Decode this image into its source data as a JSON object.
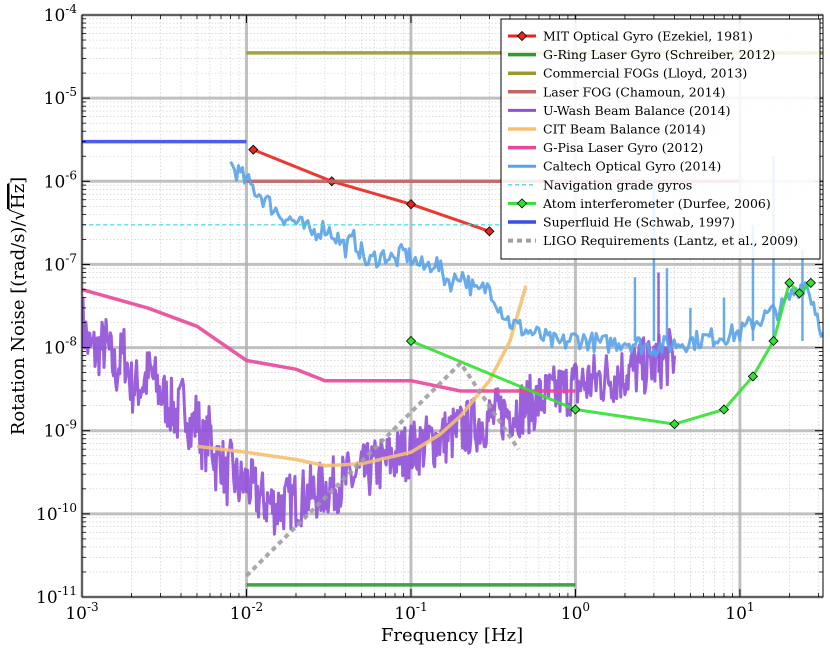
{
  "chart_data": {
    "type": "line",
    "title": "",
    "xlabel": "Frequency [Hz]",
    "ylabel": "Rotation Noise [(rad/s)/√Hz]",
    "ylabel_parts": {
      "before": "Rotation Noise [(rad/s)/",
      "root_symbol": "√",
      "root_arg": "Hz",
      "after": "]"
    },
    "xscale": "log",
    "yscale": "log",
    "xlim": [
      0.001,
      32
    ],
    "ylim": [
      1e-11,
      0.0001
    ],
    "grid": true,
    "legend_position": "top-right",
    "x_ticks": [
      {
        "value": 0.001,
        "base": "10",
        "exp": "-3"
      },
      {
        "value": 0.01,
        "base": "10",
        "exp": "-2"
      },
      {
        "value": 0.1,
        "base": "10",
        "exp": "-1"
      },
      {
        "value": 1,
        "base": "10",
        "exp": "0"
      },
      {
        "value": 10,
        "base": "10",
        "exp": "1"
      }
    ],
    "y_ticks": [
      {
        "value": 1e-11,
        "base": "10",
        "exp": "-11"
      },
      {
        "value": 1e-10,
        "base": "10",
        "exp": "-10"
      },
      {
        "value": 1e-09,
        "base": "10",
        "exp": "-9"
      },
      {
        "value": 1e-08,
        "base": "10",
        "exp": "-8"
      },
      {
        "value": 1e-07,
        "base": "10",
        "exp": "-7"
      },
      {
        "value": 1e-06,
        "base": "10",
        "exp": "-6"
      },
      {
        "value": 1e-05,
        "base": "10",
        "exp": "-5"
      },
      {
        "value": 0.0001,
        "base": "10",
        "exp": "-4"
      }
    ],
    "series": [
      {
        "name": "MIT Optical Gyro (Ezekiel, 1981)",
        "color": "#e8251e",
        "style": "solid-marker",
        "x": [
          0.011,
          0.033,
          0.1,
          0.3
        ],
        "y": [
          2.4e-06,
          1e-06,
          5.3e-07,
          2.5e-07
        ]
      },
      {
        "name": "G-Ring Laser Gyro (Schreiber, 2012)",
        "color": "#2f9a2f",
        "style": "solid",
        "x": [
          0.01,
          1
        ],
        "y": [
          1.4e-11,
          1.4e-11
        ]
      },
      {
        "name": "Commercial FOGs (Lloyd, 2013)",
        "color": "#9a9a2a",
        "style": "solid",
        "x": [
          0.01,
          32
        ],
        "y": [
          3.5e-05,
          3.5e-05
        ]
      },
      {
        "name": "Laser FOG (Chamoun, 2014)",
        "color": "#c06565",
        "style": "solid",
        "x": [
          0.01,
          10
        ],
        "y": [
          1e-06,
          1e-06
        ]
      },
      {
        "name": "U-Wash Beam Balance (2014)",
        "color": "#9050d8",
        "style": "noisy",
        "x": [
          0.001,
          0.0011,
          0.0012,
          0.0014,
          0.0016,
          0.0018,
          0.002,
          0.0023,
          0.0026,
          0.003,
          0.0034,
          0.0038,
          0.0042,
          0.0046,
          0.005,
          0.0055,
          0.006,
          0.0065,
          0.007,
          0.0075,
          0.008,
          0.009,
          0.01,
          0.012,
          0.015,
          0.02,
          0.03,
          0.05,
          0.1,
          0.2,
          0.3,
          0.5,
          1,
          2,
          3,
          4
        ],
        "y": [
          2.2e-08,
          1e-08,
          9e-09,
          1.1e-08,
          5e-09,
          9e-09,
          3.4e-09,
          3.6e-09,
          5e-09,
          2.8e-09,
          2.1e-09,
          1.5e-09,
          2.5e-09,
          1e-09,
          1.5e-09,
          6e-10,
          1e-09,
          4e-10,
          5e-10,
          2.5e-10,
          3.5e-10,
          2.2e-10,
          2.4e-10,
          1.6e-10,
          1.2e-10,
          1.5e-10,
          2e-10,
          3e-10,
          6e-10,
          1e-09,
          1.4e-09,
          2e-09,
          3.5e-09,
          5e-09,
          6.5e-09,
          8e-09
        ],
        "spikes": [
          {
            "x": 3.2,
            "y": 8e-08
          }
        ]
      },
      {
        "name": "CIT Beam Balance (2014)",
        "color": "#f5c070",
        "style": "solid",
        "x": [
          0.005,
          0.01,
          0.02,
          0.03,
          0.05,
          0.1,
          0.15,
          0.2,
          0.3,
          0.4,
          0.5
        ],
        "y": [
          6.5e-10,
          5.5e-10,
          4.5e-10,
          3.8e-10,
          4e-10,
          5.5e-10,
          9e-10,
          1.5e-09,
          4e-09,
          1.2e-08,
          5.5e-08
        ]
      },
      {
        "name": "G-Pisa Laser Gyro (2012)",
        "color": "#e8479a",
        "style": "solid",
        "x": [
          0.001,
          0.0025,
          0.005,
          0.01,
          0.02,
          0.03,
          0.1,
          0.2,
          1
        ],
        "y": [
          5e-08,
          3e-08,
          1.8e-08,
          7e-09,
          5.5e-09,
          4e-09,
          4e-09,
          3e-09,
          3e-09
        ]
      },
      {
        "name": "Caltech Optical Gyro (2014)",
        "color": "#5aa3e8",
        "style": "noisy",
        "x": [
          0.008,
          0.01,
          0.013,
          0.016,
          0.02,
          0.025,
          0.03,
          0.035,
          0.04,
          0.045,
          0.05,
          0.055,
          0.06,
          0.07,
          0.08,
          0.09,
          0.1,
          0.12,
          0.14,
          0.16,
          0.18,
          0.2,
          0.25,
          0.3,
          0.35,
          0.4,
          0.5,
          0.6,
          0.7,
          0.8,
          1,
          1.5,
          2,
          3,
          5,
          8,
          10,
          12,
          15,
          18,
          20,
          22,
          25,
          28,
          32
        ],
        "y": [
          1.6e-06,
          1e-06,
          6e-07,
          4e-07,
          3.2e-07,
          2.4e-07,
          2.8e-07,
          2.2e-07,
          1.6e-07,
          2e-07,
          1.4e-07,
          1e-07,
          1.2e-07,
          1.3e-07,
          1.1e-07,
          1.4e-07,
          1.2e-07,
          9e-08,
          1.1e-07,
          7e-08,
          6e-08,
          8e-08,
          4.5e-08,
          5.5e-08,
          3e-08,
          2e-08,
          1.6e-08,
          1.4e-08,
          1.2e-08,
          1.1e-08,
          1.3e-08,
          1.1e-08,
          1.2e-08,
          1e-08,
          1.2e-08,
          1.4e-08,
          1.5e-08,
          2e-08,
          2.5e-08,
          3e-08,
          4e-08,
          5e-08,
          6e-08,
          3.5e-08,
          1.5e-08
        ],
        "spikes": [
          {
            "x": 2.3,
            "y": 7e-08
          },
          {
            "x": 3.0,
            "y": 1e-06
          },
          {
            "x": 3.6,
            "y": 9e-08
          },
          {
            "x": 5.0,
            "y": 3e-08
          },
          {
            "x": 8.0,
            "y": 4e-08
          },
          {
            "x": 12.0,
            "y": 3e-07
          },
          {
            "x": 16.0,
            "y": 2e-06
          },
          {
            "x": 24.0,
            "y": 1.5e-07
          }
        ]
      },
      {
        "name": "Navigation grade gyros",
        "color": "#45e0e0",
        "style": "dashed",
        "x": [
          0.001,
          0.5
        ],
        "y": [
          3e-07,
          3e-07
        ]
      },
      {
        "name": "Atom interferometer (Durfee, 2006)",
        "color": "#33e033",
        "style": "solid-marker",
        "x": [
          0.1,
          1,
          4,
          8,
          12,
          16,
          20,
          23,
          27
        ],
        "y": [
          1.2e-08,
          1.8e-09,
          1.2e-09,
          1.8e-09,
          4.5e-09,
          1.2e-08,
          6e-08,
          4.5e-08,
          6e-08
        ]
      },
      {
        "name": "Superfluid He (Schwab, 1997)",
        "color": "#3d4be8",
        "style": "solid",
        "x": [
          0.001,
          0.01
        ],
        "y": [
          3e-06,
          3e-06
        ]
      },
      {
        "name": "LIGO Requirements (Lantz, et al., 2009)",
        "color": "#a0a0a0",
        "style": "dotted",
        "x": [
          0.01,
          0.2,
          0.45
        ],
        "y": [
          1.8e-11,
          6.5e-09,
          6e-10
        ]
      }
    ]
  }
}
